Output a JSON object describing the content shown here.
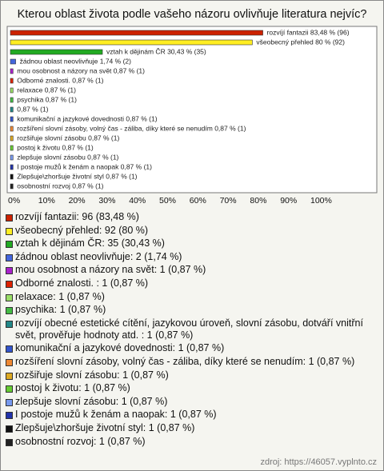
{
  "chart_data": {
    "type": "bar",
    "title": "Kterou oblast života podle vašeho názoru ovlivňuje literatura nejvíc?",
    "values": [
      83.48,
      80,
      30.43,
      1.74,
      0.87,
      0.87,
      0.87,
      0.87,
      0.87,
      0.87,
      0.87,
      0.87,
      0.87,
      0.87,
      0.87,
      0.87,
      0.87
    ],
    "value_labels": [
      "rozvíjí fantazii 83,48 % (96)",
      "všeobecný přehled 80 % (92)",
      "vztah k dějinám ČR 30,43 % (35)",
      "žádnou oblast neovlivňuje 1,74 % (2)",
      "mou osobnost a názory na svět 0,87 % (1)",
      "Odborné znalosti.  0,87 % (1)",
      "relaxace 0,87 % (1)",
      "psychika 0,87 % (1)",
      "0,87 % (1)",
      "komunikační a jazykové dovednosti 0,87 % (1)",
      "rozšíření slovní zásoby, volný čas - záliba, díky které se nenudím 0,87 % (1)",
      "rozšiřuje slovní zásobu 0,87 % (1)",
      "postoj k životu 0,87 % (1)",
      "zlepšuje slovní zásobu 0,87 % (1)",
      "I postoje mužů k ženám a naopak 0,87 % (1)",
      "Zlepšuje\\zhoršuje životní styl 0,87 % (1)",
      "osobnostní rozvoj 0,87 % (1)"
    ],
    "colors": [
      "#cc2200",
      "#ffee22",
      "#22aa22",
      "#4466dd",
      "#aa22cc",
      "#dd2200",
      "#99dd66",
      "#44bb44",
      "#228888",
      "#3355cc",
      "#ee8833",
      "#ddaa22",
      "#66cc33",
      "#7799ee",
      "#2233aa",
      "#111111",
      "#222222"
    ],
    "legend": [
      "rozvíjí fantazii: 96 (83,48 %)",
      "všeobecný přehled: 92 (80 %)",
      "vztah k dějinám ČR: 35 (30,43 %)",
      "žádnou oblast neovlivňuje: 2 (1,74 %)",
      "mou osobnost a názory na svět: 1 (0,87 %)",
      "Odborné znalosti. : 1 (0,87 %)",
      "relaxace: 1 (0,87 %)",
      "psychika: 1 (0,87 %)",
      "rozvíjí obecné estetické cítění, jazykovou úroveň, slovní zásobu, dotváří vnitřní svět, prověřuje hodnoty atd. : 1 (0,87 %)",
      "komunikační a jazykové dovednosti: 1 (0,87 %)",
      "rozšíření slovní zásoby, volný čas - záliba, díky které se nenudím: 1 (0,87 %)",
      "rozšiřuje slovní zásobu: 1 (0,87 %)",
      "postoj k životu: 1 (0,87 %)",
      "zlepšuje slovní zásobu: 1 (0,87 %)",
      "I postoje mužů k ženám a naopak: 1 (0,87 %)",
      "Zlepšuje\\zhoršuje životní styl: 1 (0,87 %)",
      "osobnostní rozvoj: 1 (0,87 %)"
    ],
    "xlim": [
      0,
      100
    ],
    "xticks": [
      {
        "value": 0,
        "label": "0%"
      },
      {
        "value": 10,
        "label": "10%"
      },
      {
        "value": 20,
        "label": "20%"
      },
      {
        "value": 30,
        "label": "30%"
      },
      {
        "value": 40,
        "label": "40%"
      },
      {
        "value": 50,
        "label": "50%"
      },
      {
        "value": 60,
        "label": "60%"
      },
      {
        "value": 70,
        "label": "70%"
      },
      {
        "value": 80,
        "label": "80%"
      },
      {
        "value": 90,
        "label": "90%"
      },
      {
        "value": 100,
        "label": "100%"
      }
    ],
    "source": "zdroj: https://46057.vyplnto.cz"
  }
}
